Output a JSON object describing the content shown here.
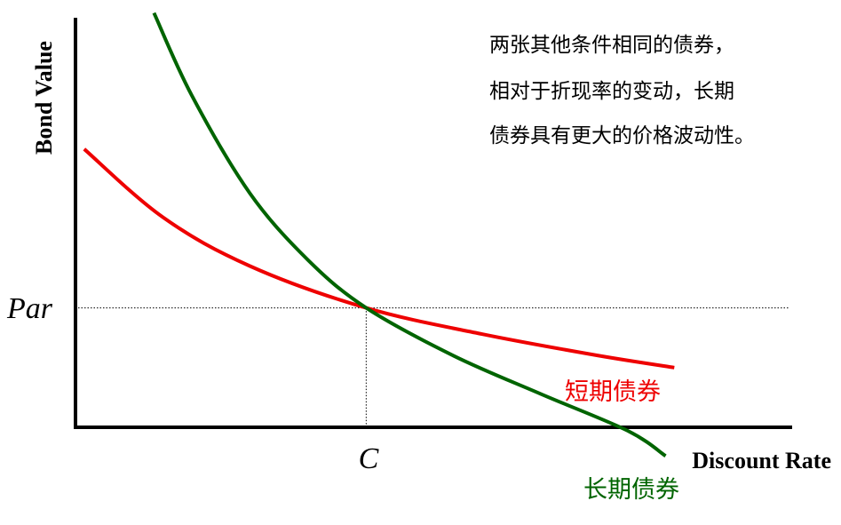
{
  "chart_data": {
    "type": "line",
    "xlabel": "Discount Rate",
    "ylabel": "Bond Value",
    "x_ticks": [
      {
        "label": "C",
        "value": 1
      }
    ],
    "y_ticks": [
      {
        "label": "Par",
        "value": 1
      }
    ],
    "xlim": [
      0,
      2.45
    ],
    "ylim": [
      0,
      3.4
    ],
    "grid": false,
    "annotation_lines": [
      "两张其他条件相同的债券，",
      "相对于折现率的变动，长期",
      "债券具有更大的价格波动性。"
    ],
    "series": [
      {
        "name": "短期债券",
        "color": "#ee0000",
        "x": [
          0.03,
          0.3,
          0.6,
          1.0,
          1.4,
          1.8,
          2.06
        ],
        "y": [
          2.33,
          1.76,
          1.35,
          1.0,
          0.78,
          0.6,
          0.5
        ]
      },
      {
        "name": "长期债券",
        "color": "#006400",
        "x": [
          0.27,
          0.4,
          0.6,
          0.8,
          1.0,
          1.3,
          1.6,
          1.9,
          2.03
        ],
        "y": [
          3.47,
          2.78,
          1.96,
          1.4,
          1.0,
          0.6,
          0.28,
          -0.03,
          -0.24
        ]
      }
    ]
  }
}
